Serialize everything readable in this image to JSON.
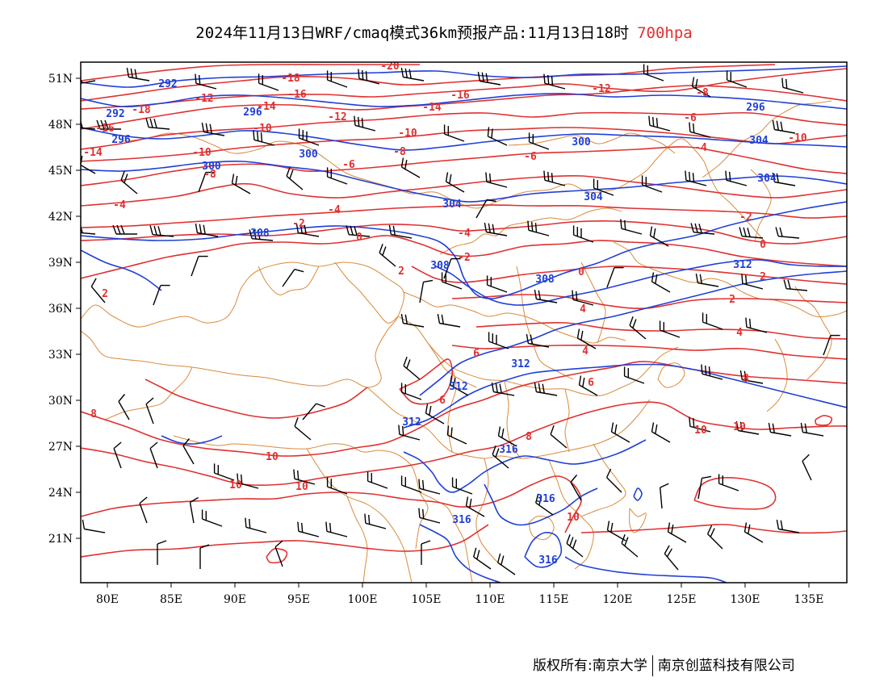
{
  "title": {
    "main": "2024年11月13日WRF/cmaq模式36km预报产品:11月13日18时",
    "level": "700hpa"
  },
  "colors": {
    "geopotential": "#1f3fd6",
    "temperature": "#e03030",
    "boundaries": "#d98a3a",
    "wind_barbs": "#000000",
    "level_text": "#e03030"
  },
  "axes": {
    "lat_labels": [
      "51N",
      "48N",
      "45N",
      "42N",
      "39N",
      "36N",
      "33N",
      "30N",
      "27N",
      "24N",
      "21N"
    ],
    "lon_labels": [
      "80E",
      "85E",
      "90E",
      "95E",
      "100E",
      "105E",
      "110E",
      "115E",
      "120E",
      "125E",
      "130E",
      "135E"
    ]
  },
  "contour_labels": {
    "geopotential": [
      "292",
      "292",
      "296",
      "296",
      "296",
      "300",
      "300",
      "300",
      "304",
      "304",
      "304",
      "304",
      "308",
      "308",
      "308",
      "312",
      "312",
      "312",
      "312",
      "316",
      "316",
      "316",
      "316"
    ],
    "temperature": [
      "-20",
      "-18",
      "-18",
      "-16",
      "-16",
      "-16",
      "-14",
      "-14",
      "-14",
      "-12",
      "-12",
      "-12",
      "-10",
      "-10",
      "-10",
      "-10",
      "-8",
      "-8",
      "-8",
      "-6",
      "-6",
      "-6",
      "-4",
      "-4",
      "-4",
      "-4",
      "-2",
      "-2",
      "-2",
      "0",
      "0",
      "0",
      "2",
      "2",
      "2",
      "2",
      "4",
      "4",
      "4",
      "6",
      "6",
      "6",
      "8",
      "8",
      "8",
      "10",
      "10",
      "10",
      "10",
      "10",
      "10"
    ]
  },
  "footer": {
    "left": "版权所有:南京大学",
    "right": "南京创蓝科技有限公司"
  }
}
